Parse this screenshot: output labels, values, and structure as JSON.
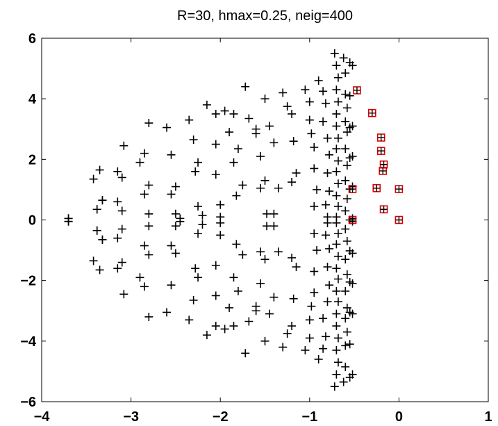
{
  "chart_data": {
    "type": "scatter",
    "title": "R=30, hmax=0.25, neig=400",
    "xlabel": "",
    "ylabel": "",
    "xlim": [
      -4,
      1
    ],
    "ylim": [
      -6,
      6
    ],
    "xticks": [
      -4,
      -3,
      -2,
      -1,
      0,
      1
    ],
    "yticks": [
      -6,
      -4,
      -2,
      0,
      2,
      4,
      6
    ],
    "xtick_labels": [
      "−4",
      "−3",
      "−2",
      "−1",
      "0",
      "1"
    ],
    "ytick_labels": [
      "−6",
      "−4",
      "−2",
      "0",
      "2",
      "4",
      "6"
    ],
    "grid": false,
    "marker_color": "#000000",
    "highlight_color": "#e00000",
    "series": [
      {
        "marker": "plus",
        "points_top": [
          [
            -3.7,
            0.05
          ],
          [
            -3.7,
            -0.05
          ],
          [
            -3.42,
            1.35
          ],
          [
            -3.35,
            1.65
          ],
          [
            -3.38,
            0.35
          ],
          [
            -3.32,
            0.65
          ],
          [
            -3.38,
            -0.35
          ],
          [
            -3.32,
            -0.65
          ],
          [
            -3.15,
            1.6
          ],
          [
            -3.08,
            2.45
          ],
          [
            -3.1,
            1.4
          ],
          [
            -3.15,
            0.6
          ],
          [
            -3.1,
            0.3
          ],
          [
            -2.85,
            2.2
          ],
          [
            -2.8,
            3.2
          ],
          [
            -2.9,
            1.9
          ],
          [
            -2.8,
            1.15
          ],
          [
            -2.85,
            0.85
          ],
          [
            -2.8,
            0.2
          ],
          [
            -2.6,
            3.05
          ],
          [
            -2.55,
            2.15
          ],
          [
            -2.5,
            1.1
          ],
          [
            -2.55,
            0.85
          ],
          [
            -2.5,
            0.2
          ],
          [
            -2.45,
            0.05
          ],
          [
            -2.35,
            3.3
          ],
          [
            -2.3,
            2.65
          ],
          [
            -2.28,
            1.6
          ],
          [
            -2.25,
            1.9
          ],
          [
            -2.25,
            0.45
          ],
          [
            -2.2,
            0.15
          ],
          [
            -2.15,
            3.8
          ],
          [
            -2.05,
            3.5
          ],
          [
            -2.05,
            2.5
          ],
          [
            -2.05,
            1.5
          ],
          [
            -2.0,
            0.5
          ],
          [
            -2.0,
            0.1
          ],
          [
            -1.95,
            3.6
          ],
          [
            -1.85,
            3.5
          ],
          [
            -1.9,
            2.9
          ],
          [
            -1.8,
            2.35
          ],
          [
            -1.85,
            1.9
          ],
          [
            -1.75,
            1.15
          ],
          [
            -1.82,
            0.8
          ],
          [
            -1.72,
            4.4
          ],
          [
            -1.68,
            3.35
          ],
          [
            -1.6,
            2.85
          ],
          [
            -1.55,
            2.1
          ],
          [
            -1.5,
            1.3
          ],
          [
            -1.55,
            1.05
          ],
          [
            -1.48,
            0.2
          ],
          [
            -1.6,
            3.0
          ],
          [
            -1.5,
            4.0
          ],
          [
            -1.45,
            3.1
          ],
          [
            -1.4,
            2.55
          ],
          [
            -1.35,
            1.05
          ],
          [
            -1.4,
            0.2
          ],
          [
            -1.3,
            4.2
          ],
          [
            -1.25,
            3.75
          ],
          [
            -1.2,
            3.5
          ],
          [
            -1.18,
            2.6
          ],
          [
            -1.15,
            1.55
          ],
          [
            -1.2,
            1.25
          ],
          [
            -1.05,
            4.3
          ],
          [
            -1.0,
            3.9
          ],
          [
            -1.0,
            3.3
          ],
          [
            -0.98,
            2.85
          ],
          [
            -0.95,
            2.4
          ],
          [
            -0.95,
            1.7
          ],
          [
            -0.92,
            1.0
          ],
          [
            -0.95,
            0.45
          ],
          [
            -0.9,
            4.6
          ],
          [
            -0.85,
            4.25
          ],
          [
            -0.82,
            3.85
          ],
          [
            -0.85,
            3.25
          ],
          [
            -0.8,
            2.7
          ],
          [
            -0.78,
            2.15
          ],
          [
            -0.8,
            1.55
          ],
          [
            -0.78,
            0.95
          ],
          [
            -0.82,
            0.5
          ],
          [
            -0.8,
            0.1
          ],
          [
            -0.72,
            5.5
          ],
          [
            -0.7,
            5.1
          ],
          [
            -0.68,
            4.7
          ],
          [
            -0.7,
            4.3
          ],
          [
            -0.68,
            3.9
          ],
          [
            -0.7,
            3.5
          ],
          [
            -0.7,
            3.1
          ],
          [
            -0.68,
            2.7
          ],
          [
            -0.7,
            2.35
          ],
          [
            -0.68,
            1.95
          ],
          [
            -0.7,
            1.6
          ],
          [
            -0.68,
            1.2
          ],
          [
            -0.7,
            0.8
          ],
          [
            -0.68,
            0.45
          ],
          [
            -0.7,
            0.1
          ],
          [
            -0.62,
            5.35
          ],
          [
            -0.6,
            4.85
          ],
          [
            -0.6,
            4.15
          ],
          [
            -0.58,
            3.7
          ],
          [
            -0.6,
            3.25
          ],
          [
            -0.58,
            2.9
          ],
          [
            -0.6,
            2.35
          ],
          [
            -0.58,
            1.8
          ],
          [
            -0.6,
            1.3
          ],
          [
            -0.58,
            0.7
          ],
          [
            -0.6,
            0.3
          ],
          [
            -0.55,
            5.2
          ],
          [
            -0.52,
            5.1
          ],
          [
            -0.55,
            4.1
          ],
          [
            -0.52,
            3.1
          ],
          [
            -0.55,
            3.05
          ],
          [
            -0.52,
            2.1
          ],
          [
            -0.55,
            2.05
          ],
          [
            -0.52,
            1.1
          ],
          [
            -0.55,
            1.02
          ],
          [
            -0.52,
            0.05
          ],
          [
            -0.55,
            0.0
          ]
        ]
      },
      {
        "name": "",
        "marker": "square-plus",
        "points": [
          [
            -0.47,
            4.28
          ],
          [
            -0.3,
            3.53
          ],
          [
            -0.2,
            2.72
          ],
          [
            -0.2,
            2.28
          ],
          [
            -0.17,
            1.83
          ],
          [
            -0.18,
            1.62
          ],
          [
            -0.25,
            1.05
          ],
          [
            -0.52,
            1.02
          ],
          [
            -0.52,
            0.0
          ],
          [
            0.0,
            1.02
          ],
          [
            0.0,
            0.0
          ],
          [
            -0.17,
            0.35
          ]
        ]
      }
    ]
  }
}
